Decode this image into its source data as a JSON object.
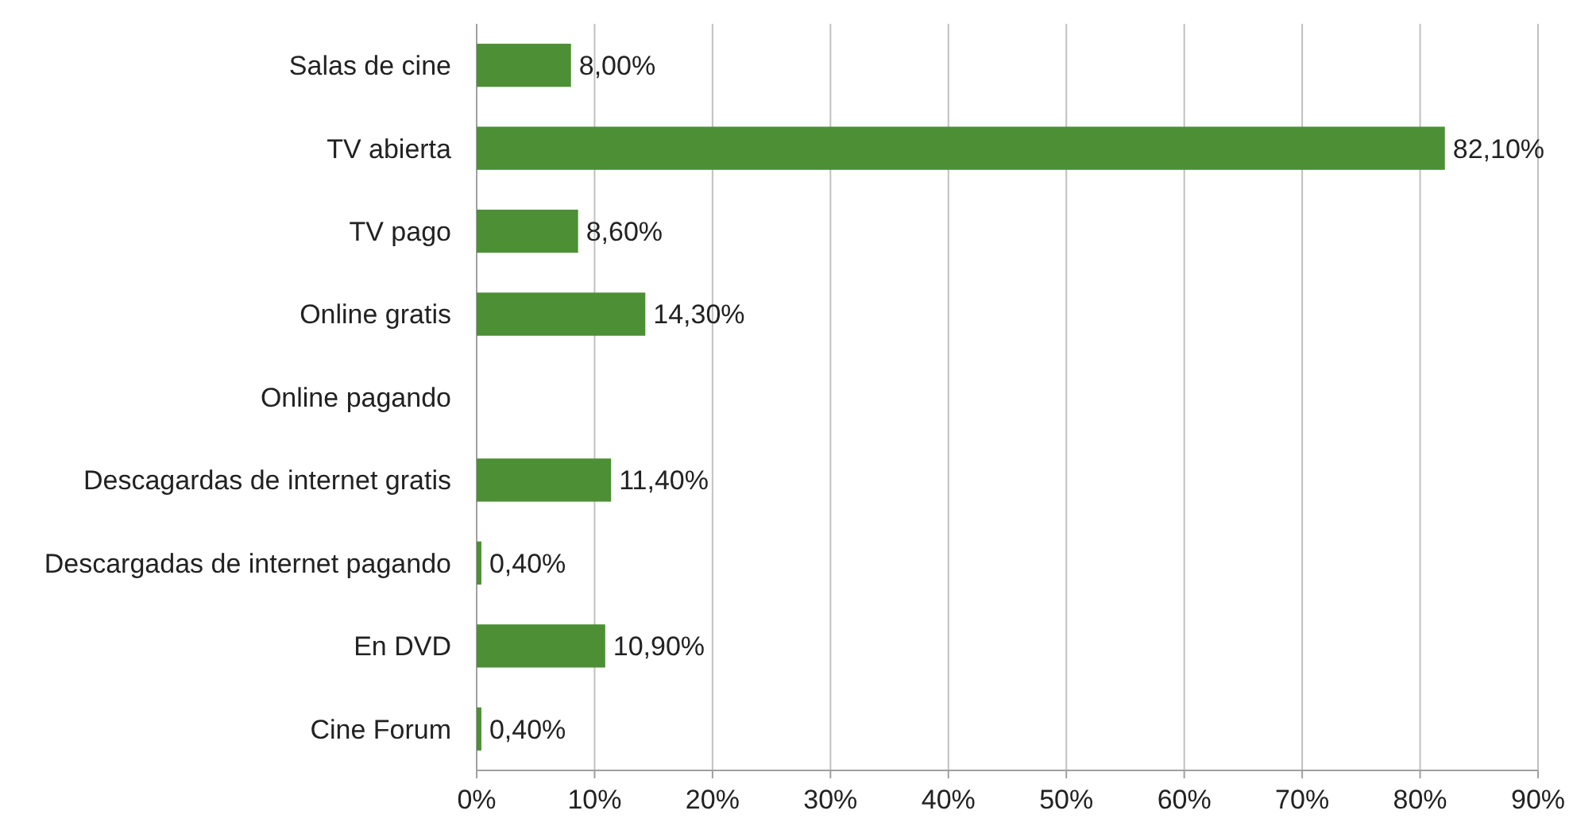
{
  "chart_data": {
    "type": "bar",
    "orientation": "horizontal",
    "categories": [
      "Salas de cine",
      "TV abierta",
      "TV pago",
      "Online gratis",
      "Online pagando",
      "Descagardas de internet gratis",
      "Descargadas de internet pagando",
      "En DVD",
      "Cine Forum"
    ],
    "values": [
      8.0,
      82.1,
      8.6,
      14.3,
      null,
      11.4,
      0.4,
      10.9,
      0.4
    ],
    "value_labels": [
      "8,00%",
      "82,10%",
      "8,60%",
      "14,30%",
      null,
      "11,40%",
      "0,40%",
      "10,90%",
      "0,40%"
    ],
    "color": "#4d8f35",
    "xlim": [
      0,
      90
    ],
    "xticks": [
      {
        "value": 0,
        "label": "0%"
      },
      {
        "value": 10,
        "label": "10%"
      },
      {
        "value": 20,
        "label": "20%"
      },
      {
        "value": 30,
        "label": "30%"
      },
      {
        "value": 40,
        "label": "40%"
      },
      {
        "value": 50,
        "label": "50%"
      },
      {
        "value": 60,
        "label": "60%"
      },
      {
        "value": 70,
        "label": "70%"
      },
      {
        "value": 80,
        "label": "80%"
      },
      {
        "value": 90,
        "label": "90%"
      }
    ],
    "grid": "x"
  }
}
